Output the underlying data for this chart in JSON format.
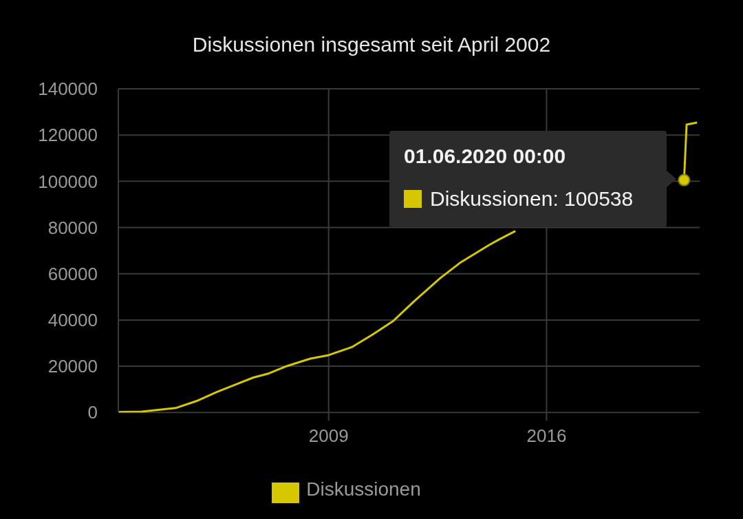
{
  "chart_data": {
    "type": "line",
    "title": "Diskussionen insgesamt seit April 2002",
    "x": [
      "2002-04",
      "2003-01",
      "2004-02",
      "2004-10",
      "2005-06",
      "2006-01",
      "2006-08",
      "2007-02",
      "2007-09",
      "2008-06",
      "2009-01",
      "2009-10",
      "2010-06",
      "2011-02",
      "2011-10",
      "2012-08",
      "2013-04",
      "2014-03",
      "2014-07",
      "2015-01",
      "2016-06",
      "2020-06-01",
      "2020-07",
      "2020-11"
    ],
    "series": [
      {
        "name": "Diskussionen",
        "color": "#d6c700",
        "values": [
          200,
          400,
          1900,
          4900,
          8900,
          12000,
          15100,
          16900,
          20100,
          23300,
          24800,
          28300,
          33700,
          39700,
          48100,
          58100,
          65000,
          72500,
          75000,
          78500,
          null,
          100538,
          124500,
          125400
        ]
      }
    ],
    "xlim": [
      "2002-04",
      "2020-12"
    ],
    "xticks": [
      "2009",
      "2016"
    ],
    "ylim": [
      0,
      140000
    ],
    "yticks": [
      0,
      20000,
      40000,
      60000,
      80000,
      100000,
      120000,
      140000
    ],
    "grid": true,
    "legend": "bottom",
    "marker": "none",
    "line_style": "solid",
    "annotations": [
      "01.06.2020 00:00",
      "Diskussionen: 100538"
    ]
  }
}
